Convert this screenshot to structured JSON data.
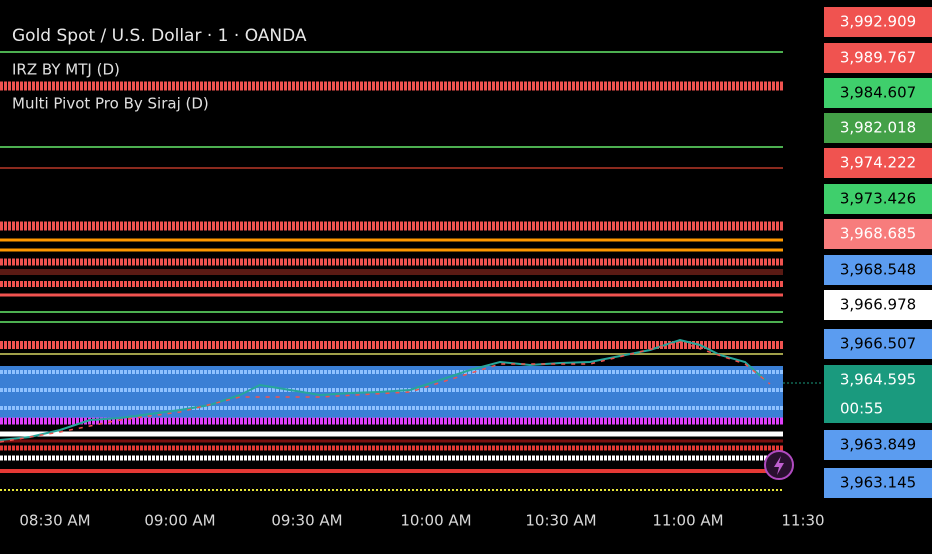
{
  "header": {
    "title": "Gold Spot / U.S. Dollar · 1 · OANDA",
    "indicators": [
      "IRZ BY MTJ  (D)",
      "Multi Pivot Pro By Siraj (D)"
    ]
  },
  "price_scale": [
    {
      "label": "3,992.909",
      "color": "#f05350",
      "text_color": "#ffffff"
    },
    {
      "label": "3,989.767",
      "color": "#f05350",
      "text_color": "#ffffff"
    },
    {
      "label": "3,984.607",
      "color": "#3fcf6c",
      "text_color": "#000000"
    },
    {
      "label": "3,982.018",
      "color": "#43a047",
      "text_color": "#ffffff"
    },
    {
      "label": "3,974.222",
      "color": "#f05350",
      "text_color": "#ffffff"
    },
    {
      "label": "3,973.426",
      "color": "#3fcf6c",
      "text_color": "#000000"
    },
    {
      "label": "3,968.685",
      "color": "#f77c7c",
      "text_color": "#ffffff"
    },
    {
      "label": "3,968.548",
      "color": "#5b9cf0",
      "text_color": "#000000"
    },
    {
      "label": "3,966.978",
      "color": "#ffffff",
      "text_color": "#000000"
    },
    {
      "label": "3,966.507",
      "color": "#5b9cf0",
      "text_color": "#000000"
    },
    {
      "label": "3,964.595",
      "color": "#1a9a7e",
      "text_color": "#ffffff"
    },
    {
      "label": "3,963.849",
      "color": "#5b9cf0",
      "text_color": "#000000"
    },
    {
      "label": "3,963.145",
      "color": "#5b9cf0",
      "text_color": "#000000"
    }
  ],
  "countdown": "00:55",
  "time_axis": [
    "08:30 AM",
    "09:00 AM",
    "09:30 AM",
    "10:00 AM",
    "10:30 AM",
    "11:00 AM",
    "11:30"
  ]
}
